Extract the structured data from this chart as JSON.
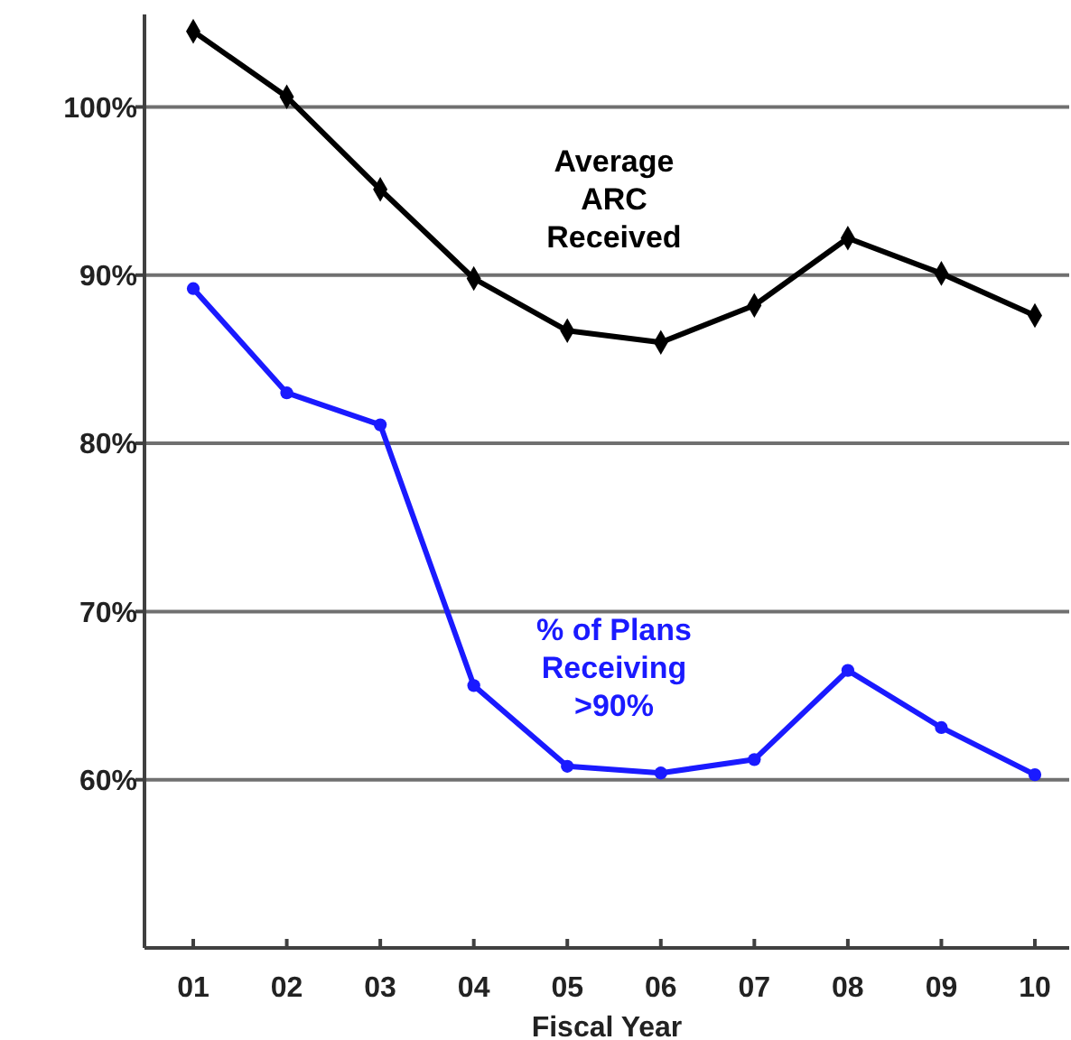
{
  "chart_data": {
    "type": "line",
    "xlabel": "Fiscal Year",
    "categories": [
      "01",
      "02",
      "03",
      "04",
      "05",
      "06",
      "07",
      "08",
      "09",
      "10"
    ],
    "series": [
      {
        "name": "Average ARC Received",
        "color": "#000000",
        "marker": "diamond",
        "values": [
          104.5,
          100.6,
          95.1,
          89.8,
          86.7,
          86.0,
          88.2,
          92.2,
          90.1,
          87.6
        ]
      },
      {
        "name": "% of Plans Receiving >90%",
        "color": "#1a1aff",
        "marker": "circle",
        "values": [
          89.2,
          83.0,
          81.1,
          65.6,
          60.8,
          60.4,
          61.2,
          66.5,
          63.1,
          60.3
        ]
      }
    ],
    "ylim": [
      50,
      105.5
    ],
    "yticks": [
      {
        "value": 60,
        "label": "60%"
      },
      {
        "value": 70,
        "label": "70%"
      },
      {
        "value": 80,
        "label": "80%"
      },
      {
        "value": 90,
        "label": "90%"
      },
      {
        "value": 100,
        "label": "100%"
      }
    ],
    "grid": "y",
    "line_style": "solid"
  }
}
